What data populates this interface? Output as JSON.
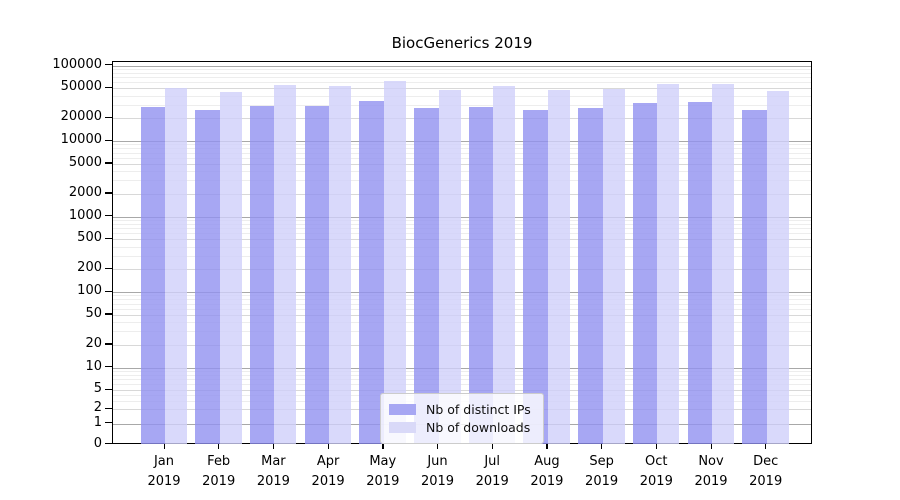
{
  "title": "BiocGenerics 2019",
  "chart_data": {
    "type": "bar",
    "title": "BiocGenerics 2019",
    "categories": [
      "Jan",
      "Feb",
      "Mar",
      "Apr",
      "May",
      "Jun",
      "Jul",
      "Aug",
      "Sep",
      "Oct",
      "Nov",
      "Dec"
    ],
    "year": "2019",
    "series": [
      {
        "name": "Nb of distinct IPs",
        "color": "#a7a7f3",
        "values": [
          28000,
          26000,
          29500,
          29500,
          34000,
          27000,
          28500,
          25500,
          27000,
          32000,
          33000,
          26000
        ]
      },
      {
        "name": "Nb of downloads",
        "color": "#d9d9f8",
        "values": [
          50500,
          44000,
          54500,
          54000,
          63000,
          48000,
          53500,
          48000,
          49500,
          57500,
          57500,
          46500
        ]
      }
    ],
    "y_tick_labels": [
      "0",
      "1",
      "2",
      "5",
      "10",
      "20",
      "50",
      "100",
      "200",
      "500",
      "1000",
      "2000",
      "5000",
      "10000",
      "20000",
      "50000",
      "100000"
    ],
    "y_tick_values": [
      0,
      1,
      2,
      5,
      10,
      20,
      50,
      100,
      200,
      500,
      1000,
      2000,
      5000,
      10000,
      20000,
      50000,
      100000
    ],
    "y_scale": "log-like with zero baseline",
    "ylim": [
      0,
      100000
    ],
    "grid": true,
    "legend_position": "bottom-center-inside"
  }
}
